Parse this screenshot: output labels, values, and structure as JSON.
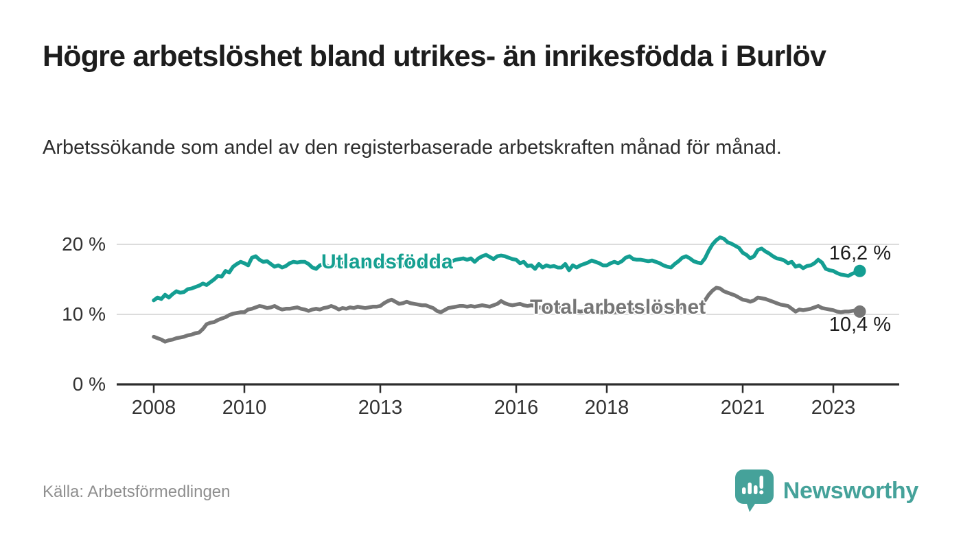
{
  "header": {
    "title": "Högre arbetslöshet bland utrikes- än inrikesfödda i Burlöv",
    "subtitle": "Arbetssökande som andel av den registerbaserade arbetskraften månad för månad."
  },
  "footer": {
    "source": "Källa: Arbetsförmedlingen",
    "brand": "Newsworthy"
  },
  "colors": {
    "foreign_born_line": "#149e92",
    "total_line": "#767676",
    "axis": "#2d2d2d",
    "gridline": "#dcdcdc",
    "brand_teal": "#45a29a"
  },
  "chart_data": {
    "type": "line",
    "unit": "%",
    "frequency": "monthly",
    "start": {
      "year": 2008,
      "month": 1
    },
    "end": {
      "year": 2023,
      "month": 8
    },
    "ylim": [
      0,
      22
    ],
    "grid": "horizontal",
    "legend_position": "inline",
    "yticks": [
      {
        "value": 0,
        "label": "0 %"
      },
      {
        "value": 10,
        "label": "10 %"
      },
      {
        "value": 20,
        "label": "20 %"
      }
    ],
    "xticks": [
      {
        "year": 2008,
        "label": "2008"
      },
      {
        "year": 2010,
        "label": "2010"
      },
      {
        "year": 2013,
        "label": "2013"
      },
      {
        "year": 2016,
        "label": "2016"
      },
      {
        "year": 2018,
        "label": "2018"
      },
      {
        "year": 2021,
        "label": "2021"
      },
      {
        "year": 2023,
        "label": "2023"
      }
    ],
    "series": [
      {
        "name": "Utlandsfödda",
        "color": "#149e92",
        "end_value": 16.2,
        "end_label": "16,2 %",
        "values": [
          12.0,
          12.4,
          12.2,
          12.8,
          12.4,
          12.9,
          13.3,
          13.1,
          13.2,
          13.6,
          13.7,
          13.9,
          14.1,
          14.4,
          14.2,
          14.6,
          15.0,
          15.5,
          15.4,
          16.2,
          16.0,
          16.8,
          17.2,
          17.5,
          17.3,
          17.0,
          18.1,
          18.3,
          17.8,
          17.5,
          17.6,
          17.2,
          16.8,
          17.0,
          16.7,
          16.9,
          17.3,
          17.5,
          17.4,
          17.5,
          17.5,
          17.2,
          16.7,
          16.5,
          17.0,
          17.2,
          16.9,
          16.7,
          17.0,
          17.2,
          17.4,
          17.3,
          17.1,
          17.0,
          16.8,
          16.9,
          17.1,
          17.3,
          17.2,
          17.0,
          17.1,
          17.3,
          17.5,
          17.4,
          17.2,
          17.1,
          17.0,
          17.2,
          17.4,
          17.5,
          17.3,
          17.2,
          17.3,
          17.4,
          17.6,
          17.5,
          17.3,
          17.2,
          17.4,
          17.6,
          17.8,
          17.9,
          18.0,
          17.8,
          18.0,
          17.5,
          18.0,
          18.3,
          18.5,
          18.2,
          17.9,
          18.3,
          18.4,
          18.3,
          18.1,
          17.9,
          17.8,
          17.3,
          17.5,
          16.9,
          17.0,
          16.5,
          17.2,
          16.7,
          17.0,
          16.8,
          16.9,
          16.7,
          16.7,
          17.2,
          16.3,
          17.0,
          16.7,
          17.0,
          17.2,
          17.4,
          17.7,
          17.5,
          17.3,
          17.0,
          17.0,
          17.3,
          17.5,
          17.3,
          17.6,
          18.1,
          18.3,
          17.9,
          17.8,
          17.8,
          17.7,
          17.6,
          17.7,
          17.5,
          17.3,
          17.0,
          16.8,
          16.7,
          17.2,
          17.6,
          18.1,
          18.3,
          18.0,
          17.6,
          17.4,
          17.3,
          18.0,
          19.1,
          20.0,
          20.6,
          21.0,
          20.8,
          20.3,
          20.1,
          19.8,
          19.5,
          18.8,
          18.5,
          18.0,
          18.3,
          19.2,
          19.4,
          19.0,
          18.7,
          18.3,
          18.0,
          17.9,
          17.7,
          17.3,
          17.5,
          16.8,
          17.0,
          16.6,
          16.9,
          17.0,
          17.3,
          17.8,
          17.4,
          16.5,
          16.3,
          16.2,
          15.9,
          15.7,
          15.6,
          15.5,
          15.8,
          16.0,
          16.2
        ]
      },
      {
        "name": "Total arbetslöshet",
        "color": "#767676",
        "end_value": 10.4,
        "end_label": "10,4 %",
        "values": [
          6.8,
          6.6,
          6.4,
          6.1,
          6.3,
          6.4,
          6.6,
          6.7,
          6.8,
          7.0,
          7.1,
          7.3,
          7.4,
          7.9,
          8.6,
          8.8,
          8.9,
          9.2,
          9.4,
          9.6,
          9.9,
          10.1,
          10.2,
          10.3,
          10.3,
          10.7,
          10.8,
          11.0,
          11.2,
          11.1,
          10.9,
          11.0,
          11.2,
          10.9,
          10.7,
          10.8,
          10.8,
          10.9,
          11.0,
          10.8,
          10.7,
          10.5,
          10.7,
          10.8,
          10.7,
          10.9,
          11.0,
          11.2,
          11.0,
          10.7,
          10.9,
          10.8,
          11.0,
          10.9,
          11.1,
          11.0,
          10.9,
          11.0,
          11.1,
          11.1,
          11.2,
          11.6,
          11.9,
          12.1,
          11.8,
          11.5,
          11.6,
          11.8,
          11.6,
          11.5,
          11.4,
          11.3,
          11.3,
          11.1,
          10.9,
          10.5,
          10.3,
          10.6,
          10.9,
          11.0,
          11.1,
          11.2,
          11.2,
          11.1,
          11.2,
          11.1,
          11.2,
          11.3,
          11.2,
          11.1,
          11.3,
          11.5,
          11.9,
          11.6,
          11.4,
          11.3,
          11.4,
          11.5,
          11.3,
          11.2,
          11.3,
          11.2,
          11.0,
          10.9,
          11.0,
          10.9,
          10.8,
          10.9,
          10.9,
          10.8,
          10.7,
          10.6,
          10.5,
          10.4,
          10.5,
          10.4,
          10.3,
          10.4,
          10.4,
          10.3,
          10.3,
          10.4,
          10.3,
          10.4,
          10.5,
          10.5,
          10.6,
          10.7,
          10.7,
          10.8,
          10.8,
          10.8,
          10.8,
          10.9,
          11.0,
          10.9,
          10.9,
          11.0,
          10.9,
          11.0,
          11.0,
          11.0,
          11.1,
          11.2,
          11.3,
          11.5,
          12.0,
          12.8,
          13.4,
          13.8,
          13.7,
          13.3,
          13.1,
          12.9,
          12.7,
          12.4,
          12.1,
          12.0,
          11.8,
          12.0,
          12.4,
          12.3,
          12.2,
          12.0,
          11.8,
          11.6,
          11.4,
          11.3,
          11.2,
          10.8,
          10.4,
          10.7,
          10.6,
          10.7,
          10.8,
          11.0,
          11.2,
          10.9,
          10.8,
          10.7,
          10.6,
          10.4,
          10.3,
          10.4,
          10.4,
          10.5,
          10.6,
          10.4
        ]
      }
    ]
  }
}
